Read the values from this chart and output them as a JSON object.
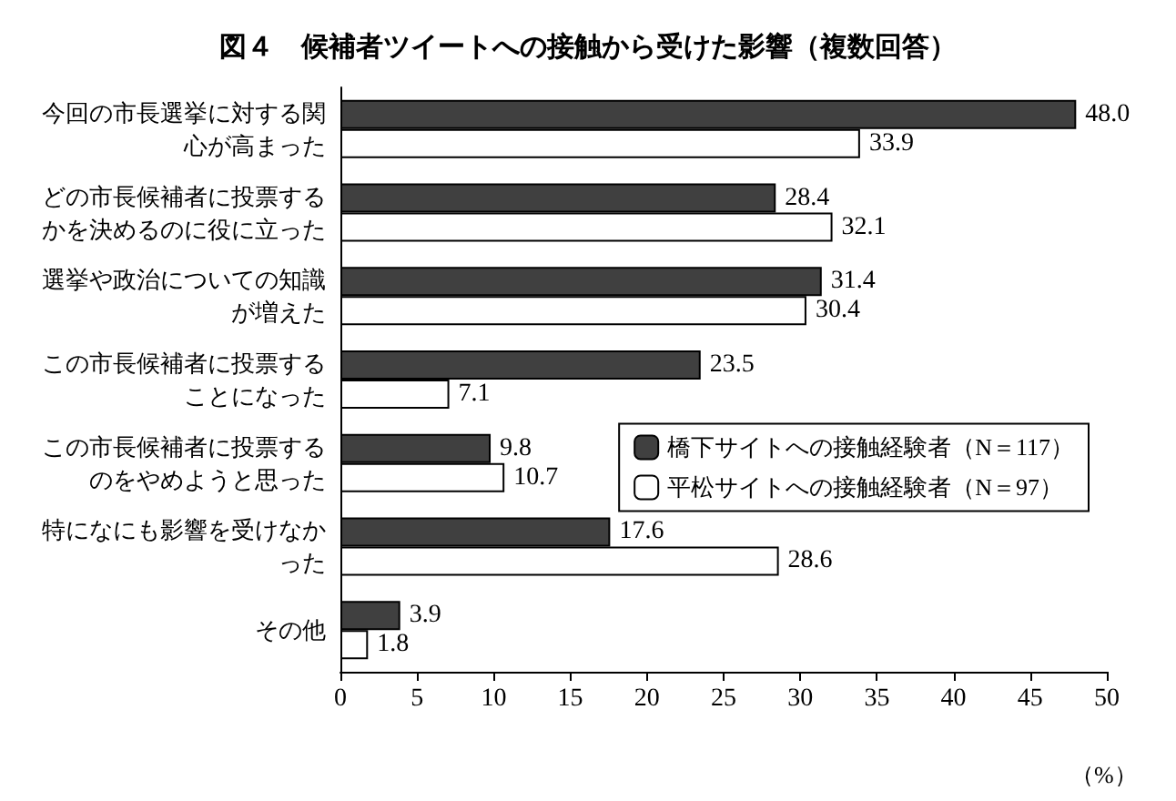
{
  "chart_data": {
    "type": "bar",
    "orientation": "horizontal",
    "title": "図４　候補者ツイートへの接触から受けた影響（複数回答）",
    "xlabel": "（%）",
    "categories": [
      "今回の市長選挙に対する関心が高まった",
      "どの市長候補者に投票するかを決めるのに役に立った",
      "選挙や政治についての知識が増えた",
      "この市長候補者に投票することになった",
      "この市長候補者に投票するのをやめようと思った",
      "特になにも影響を受けなかった",
      "その他"
    ],
    "series": [
      {
        "name": "橋下サイトへの接触経験者（N＝117）",
        "color": "#404040",
        "values": [
          48.0,
          28.4,
          31.4,
          23.5,
          9.8,
          17.6,
          3.9
        ],
        "value_labels": [
          "48.0",
          "28.4",
          "31.4",
          "23.5",
          "9.8",
          "17.6",
          "3.9"
        ]
      },
      {
        "name": "平松サイトへの接触経験者（N＝97）",
        "color": "#ffffff",
        "values": [
          33.9,
          32.1,
          30.4,
          7.1,
          10.7,
          28.6,
          1.8
        ],
        "value_labels": [
          "33.9",
          "32.1",
          "30.4",
          "7.1",
          "10.7",
          "28.6",
          "1.8"
        ]
      }
    ],
    "xlim": [
      0,
      50
    ],
    "xticks": [
      0,
      5,
      10,
      15,
      20,
      25,
      30,
      35,
      40,
      45,
      50
    ],
    "grid": false,
    "legend": "right"
  }
}
